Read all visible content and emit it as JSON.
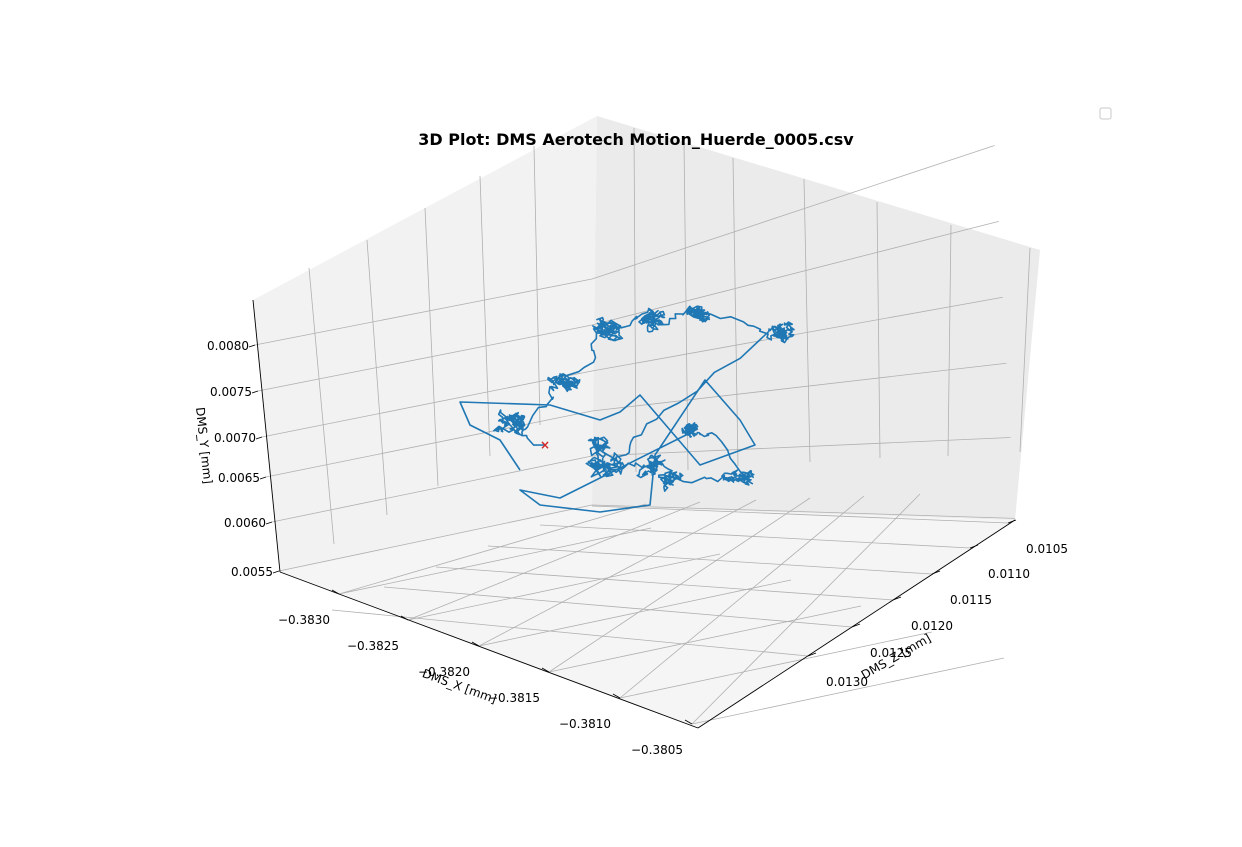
{
  "chart_data": {
    "type": "line3d",
    "title": "3D Plot: DMS Aerotech Motion_Huerde_0005.csv",
    "xlabel": "DMS_X [mm]",
    "ylabel": "DMS_Z [mm]",
    "zlabel": "DMS_Y [mm]",
    "xlim": [
      -0.3834,
      -0.3805
    ],
    "ylim": [
      0.0104,
      0.0134
    ],
    "zlim": [
      0.0055,
      0.0083
    ],
    "x_ticks": [
      "−0.3830",
      "−0.3825",
      "−0.3820",
      "−0.3815",
      "−0.3810",
      "−0.3805"
    ],
    "y_ticks": [
      "0.0105",
      "0.0110",
      "0.0115",
      "0.0120",
      "0.0125",
      "0.0130"
    ],
    "z_ticks": [
      "0.0055",
      "0.0060",
      "0.0065",
      "0.0070",
      "0.0075",
      "0.0080"
    ],
    "grid": true,
    "legend": "top-right (empty)",
    "series": [
      {
        "color": "#1f77b4",
        "description_clusters": [
          {
            "x": -0.3826,
            "z": 0.0112,
            "y": 0.0068
          },
          {
            "x": -0.3821,
            "z": 0.011,
            "y": 0.0074
          },
          {
            "x": -0.3816,
            "z": 0.0106,
            "y": 0.0078
          },
          {
            "x": -0.3812,
            "z": 0.0111,
            "y": 0.0069
          },
          {
            "x": -0.3818,
            "z": 0.0118,
            "y": 0.0066
          },
          {
            "x": -0.3814,
            "z": 0.0121,
            "y": 0.0064
          }
        ]
      }
    ],
    "markers": [
      {
        "label": "start",
        "color": "#d62728",
        "x": -0.3824,
        "z": 0.0115,
        "y": 0.0068
      }
    ]
  }
}
